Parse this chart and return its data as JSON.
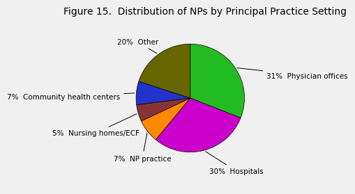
{
  "title": "Figure 15.  Distribution of NPs by Principal Practice Setting",
  "slices": [
    {
      "label": "Physician offices",
      "pct": 31,
      "color": "#22bb22"
    },
    {
      "label": "Hospitals",
      "pct": 30,
      "color": "#cc00cc"
    },
    {
      "label": "NP practice",
      "pct": 7,
      "color": "#ff8800"
    },
    {
      "label": "Nursing homes/ECF",
      "pct": 5,
      "color": "#883333"
    },
    {
      "label": "Community health centers",
      "pct": 7,
      "color": "#2233cc"
    },
    {
      "label": "Other",
      "pct": 20,
      "color": "#666600"
    }
  ],
  "label_fontsize": 7.5,
  "title_fontsize": 10,
  "background_color": "#f0f0f0",
  "startangle": 90
}
